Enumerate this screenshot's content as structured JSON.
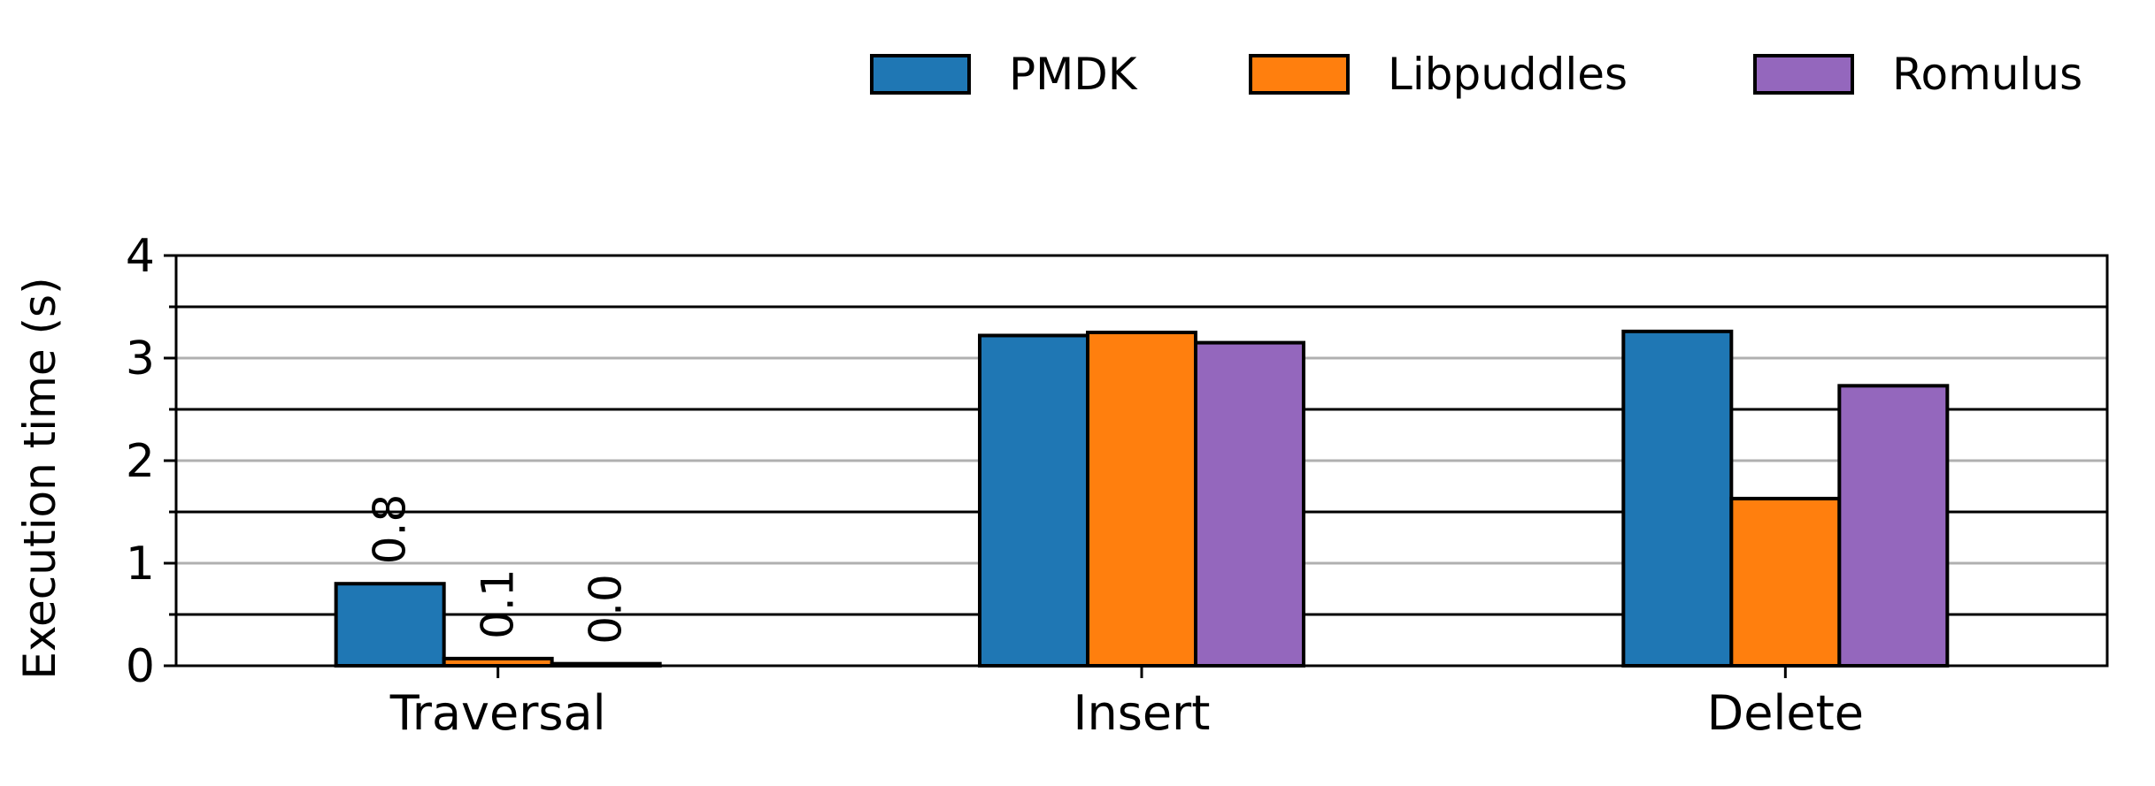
{
  "chart_data": {
    "type": "bar",
    "categories": [
      "Traversal",
      "Insert",
      "Delete"
    ],
    "series": [
      {
        "name": "PMDK",
        "color": "#1f77b4",
        "values": [
          0.8,
          3.22,
          3.26
        ]
      },
      {
        "name": "Libpuddles",
        "color": "#ff7f0e",
        "values": [
          0.07,
          3.25,
          1.63
        ]
      },
      {
        "name": "Romulus",
        "color": "#9467bd",
        "values": [
          0.02,
          3.15,
          2.73
        ]
      }
    ],
    "bar_labels": [
      {
        "category": "Traversal",
        "series": "PMDK",
        "text": "0.8"
      },
      {
        "category": "Traversal",
        "series": "Libpuddles",
        "text": "0.1"
      },
      {
        "category": "Traversal",
        "series": "Romulus",
        "text": "0.0"
      }
    ],
    "ylabel": "Execution time (s)",
    "xlabel": "",
    "ylim": [
      0,
      4
    ],
    "yticks": [
      "0",
      "1",
      "2",
      "3",
      "4"
    ],
    "grid": {
      "major": "on",
      "minor": "on",
      "major_color": "#b0b0b0",
      "minor_color": "#000000"
    },
    "legend": "top-right"
  }
}
